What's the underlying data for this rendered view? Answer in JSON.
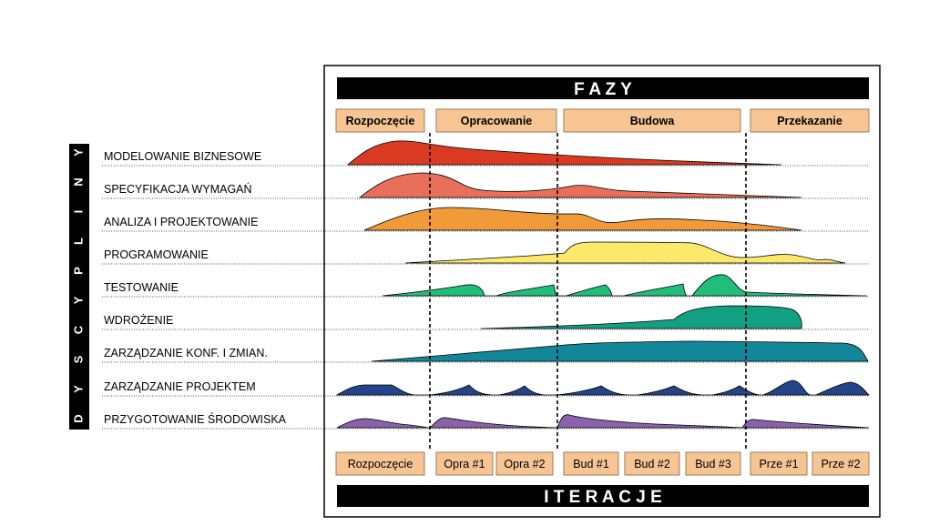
{
  "header": {
    "title": "F A Z Y"
  },
  "footer": {
    "title": "I T E R A C J E"
  },
  "side": {
    "title": "DYSCYPLINY",
    "letters": [
      "D",
      "Y",
      "S",
      "C",
      "Y",
      "P",
      "L",
      "I",
      "N",
      "Y"
    ]
  },
  "phases": [
    {
      "label": "Rozpoczęcie"
    },
    {
      "label": "Opracowanie"
    },
    {
      "label": "Budowa"
    },
    {
      "label": "Przekazanie"
    }
  ],
  "iterations": [
    {
      "label": "Rozpoczęcie"
    },
    {
      "label": "Opra #1"
    },
    {
      "label": "Opra #2"
    },
    {
      "label": "Bud #1"
    },
    {
      "label": "Bud #2"
    },
    {
      "label": "Bud #3"
    },
    {
      "label": "Prze #1"
    },
    {
      "label": "Prze #2"
    }
  ],
  "disciplines": [
    {
      "label": "MODELOWANIE BIZNESOWE",
      "color": "#d93a21"
    },
    {
      "label": "SPECYFIKACJA WYMAGAŃ",
      "color": "#e8705a"
    },
    {
      "label": "ANALIZA I PROJEKTOWANIE",
      "color": "#f19a3a"
    },
    {
      "label": "PROGRAMOWANIE",
      "color": "#fbe96a"
    },
    {
      "label": "TESTOWANIE",
      "color": "#1fbf79"
    },
    {
      "label": "WDROŻENIE",
      "color": "#12a082"
    },
    {
      "label": "ZARZĄDZANIE KONF. I ZMIAN.",
      "color": "#12879a"
    },
    {
      "label": "ZARZĄDZANIE PROJEKTEM",
      "color": "#24458a"
    },
    {
      "label": "PRZYGOTOWANIE ŚRODOWISKA",
      "color": "#8a62ab"
    }
  ],
  "colors": {
    "box_fill": "#f7c594",
    "box_stroke": "#a07a52",
    "bar": "#000000"
  }
}
